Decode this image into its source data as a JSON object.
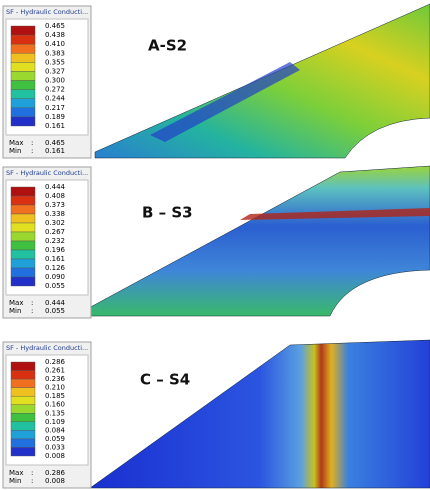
{
  "panels": [
    {
      "legend_title": "SF - Hydraulic Conducti...",
      "labels": [
        "0.465",
        "0.438",
        "0.410",
        "0.383",
        "0.355",
        "0.327",
        "0.300",
        "0.272",
        "0.244",
        "0.217",
        "0.189",
        "0.161"
      ],
      "max_label": "Max",
      "max": "0.465",
      "min_label": "Min",
      "min": "0.161",
      "separator": ":",
      "plot_label": "A-S2"
    },
    {
      "legend_title": "SF - Hydraulic Conducti...",
      "labels": [
        "0.444",
        "0.408",
        "0.373",
        "0.338",
        "0.302",
        "0.267",
        "0.232",
        "0.196",
        "0.161",
        "0.126",
        "0.090",
        "0.055"
      ],
      "max_label": "Max",
      "max": "0.444",
      "min_label": "Min",
      "min": "0.055",
      "separator": ":",
      "plot_label": "B – S3"
    },
    {
      "legend_title": "SF - Hydraulic Conducti...",
      "labels": [
        "0.286",
        "0.261",
        "0.236",
        "0.210",
        "0.185",
        "0.160",
        "0.135",
        "0.109",
        "0.084",
        "0.059",
        "0.033",
        "0.008"
      ],
      "max_label": "Max",
      "max": "0.286",
      "min_label": "Min",
      "min": "0.008",
      "separator": ":",
      "plot_label": "C – S4"
    }
  ]
}
